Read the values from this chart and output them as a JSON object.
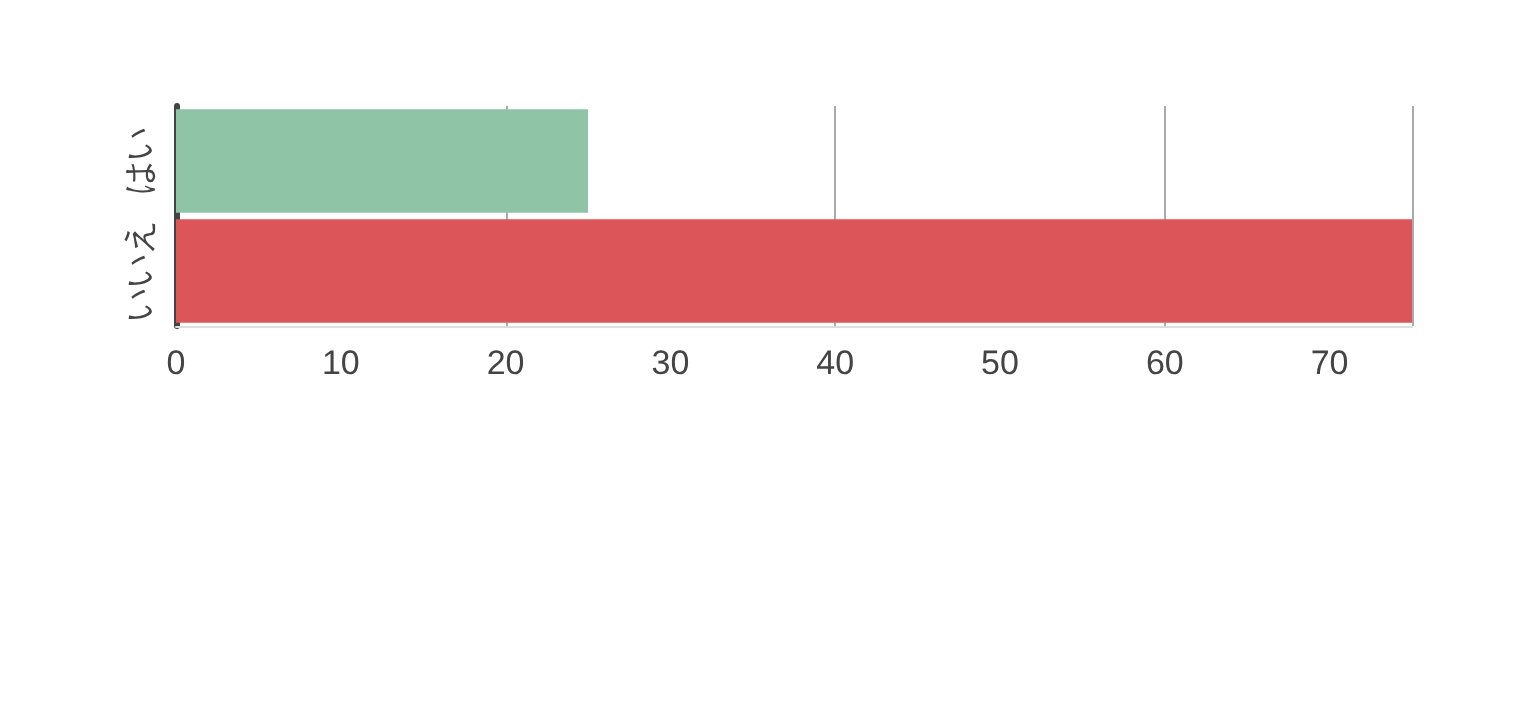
{
  "chart_data": {
    "type": "bar",
    "orientation": "horizontal",
    "categories": [
      "はい",
      "いいえ"
    ],
    "values": [
      25,
      75
    ],
    "colors": [
      "#8fc4a6",
      "#dc5558"
    ],
    "xlim": [
      0,
      75
    ],
    "xticks": [
      0,
      10,
      20,
      30,
      40,
      50,
      60,
      70
    ],
    "grid": "x"
  }
}
